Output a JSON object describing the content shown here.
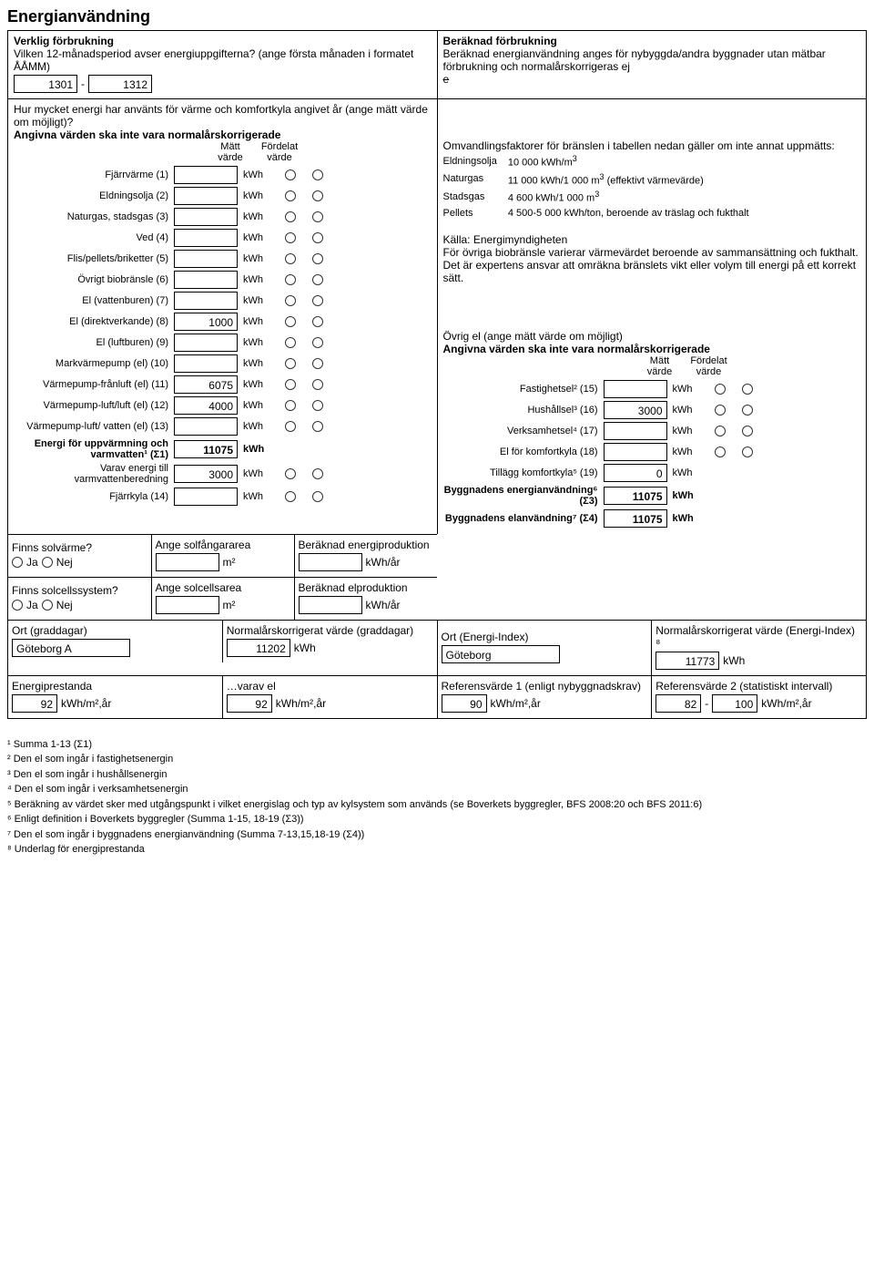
{
  "title": "Energianvändning",
  "topLeft": {
    "heading": "Verklig förbrukning",
    "periodQuestion": "Vilken 12-månadsperiod avser energiuppgifterna? (ange första månaden i formatet ÅÅMM)",
    "from": "1301",
    "sep": "-",
    "to": "1312"
  },
  "topRight": {
    "heading": "Beräknad förbrukning",
    "text": "Beräknad energianvändning anges för nybyggda/andra byggnader utan mätbar förbrukning och normalårskorrigeras ej",
    "eStrike": "e"
  },
  "midLeftIntro": {
    "q": "Hur mycket energi har använts för värme och komfortkyla angivet år (ange mätt värde om möjligt)?",
    "note": "Angivna värden ska inte vara normalårskorrigerade",
    "hdrMatt": "Mätt värde",
    "hdrFord": "Fördelat värde"
  },
  "energyRows": [
    {
      "label": "Fjärrvärme (1)",
      "value": "",
      "unit": "kWh"
    },
    {
      "label": "Eldningsolja (2)",
      "value": "",
      "unit": "kWh"
    },
    {
      "label": "Naturgas, stadsgas (3)",
      "value": "",
      "unit": "kWh"
    },
    {
      "label": "Ved (4)",
      "value": "",
      "unit": "kWh"
    },
    {
      "label": "Flis/pellets/briketter (5)",
      "value": "",
      "unit": "kWh"
    },
    {
      "label": "Övrigt biobränsle (6)",
      "value": "",
      "unit": "kWh"
    },
    {
      "label": "El (vattenburen) (7)",
      "value": "",
      "unit": "kWh"
    },
    {
      "label": "El (direktverkande) (8)",
      "value": "1000",
      "unit": "kWh"
    },
    {
      "label": "El (luftburen) (9)",
      "value": "",
      "unit": "kWh"
    },
    {
      "label": "Markvärmepump (el) (10)",
      "value": "",
      "unit": "kWh"
    },
    {
      "label": "Värmepump-frånluft (el) (11)",
      "value": "6075",
      "unit": "kWh"
    },
    {
      "label": "Värmepump-luft/luft (el) (12)",
      "value": "4000",
      "unit": "kWh"
    },
    {
      "label": "Värmepump-luft/ vatten (el) (13)",
      "value": "",
      "unit": "kWh"
    }
  ],
  "sigma1": {
    "label": "Energi för uppvärmning och varmvatten¹ (Σ1)",
    "value": "11075",
    "unit": "kWh",
    "bold": true,
    "noRadios": true
  },
  "varav": {
    "label": "Varav energi till varmvattenberedning",
    "value": "3000",
    "unit": "kWh"
  },
  "fjarrkyla": {
    "label": "Fjärrkyla (14)",
    "value": "",
    "unit": "kWh"
  },
  "factorsIntro": "Omvandlingsfaktorer för bränslen i tabellen nedan gäller om inte annat uppmätts:",
  "factors": [
    {
      "k": "Eldningsolja",
      "v": "10 000 kWh/m",
      "sup": "3",
      "tail": ""
    },
    {
      "k": "Naturgas",
      "v": "11 000 kWh/1 000 m",
      "sup": "3",
      "tail": " (effektivt värmevärde)"
    },
    {
      "k": "Stadsgas",
      "v": "4 600 kWh/1 000 m",
      "sup": "3",
      "tail": ""
    },
    {
      "k": "Pellets",
      "v": "4 500-5 000 kWh/ton, beroende av träslag och fukthalt",
      "sup": "",
      "tail": ""
    }
  ],
  "sourceLine": "Källa: Energimyndigheten",
  "sourceText": "För övriga biobränsle varierar värmevärdet beroende av sammansättning och fukthalt. Det är expertens ansvar att omräkna bränslets vikt eller volym till energi på ett korrekt sätt.",
  "ovrigEl": {
    "heading": "Övrig el (ange mätt värde om möjligt)",
    "note": "Angivna värden ska inte vara normalårskorrigerade",
    "hdrMatt": "Mätt värde",
    "hdrFord": "Fördelat värde"
  },
  "rightRows": [
    {
      "label": "Fastighetsel² (15)",
      "value": "",
      "unit": "kWh"
    },
    {
      "label": "Hushållsel³ (16)",
      "value": "3000",
      "unit": "kWh"
    },
    {
      "label": "Verksamhetsel⁴ (17)",
      "value": "",
      "unit": "kWh"
    },
    {
      "label": "El för komfortkyla (18)",
      "value": "",
      "unit": "kWh"
    }
  ],
  "tillagg": {
    "label": "Tillägg komfortkyla⁵ (19)",
    "value": "0",
    "unit": "kWh",
    "noRadios": true
  },
  "sigma3": {
    "label": "Byggnadens energianvändning⁶ (Σ3)",
    "value": "11075",
    "unit": "kWh",
    "bold": true,
    "noRadios": true
  },
  "sigma4": {
    "label": "Byggnadens elanvändning⁷ (Σ4)",
    "value": "11075",
    "unit": "kWh",
    "bold": true,
    "noRadios": true
  },
  "solv": {
    "q": "Finns solvärme?",
    "areaLbl": "Ange solfångararea",
    "areaUnit": "m²",
    "prodLbl": "Beräknad energiproduktion",
    "prodUnit": "kWh/år",
    "ja": "Ja",
    "nej": "Nej"
  },
  "solc": {
    "q": "Finns solcellssystem?",
    "areaLbl": "Ange solcellsarea",
    "areaUnit": "m²",
    "prodLbl": "Beräknad elproduktion",
    "prodUnit": "kWh/år",
    "ja": "Ja",
    "nej": "Nej"
  },
  "ortGradLbl": "Ort (graddagar)",
  "normGradLbl": "Normalårskorrigerat värde (graddagar)",
  "ortGrad": "Göteborg A",
  "normGrad": "11202",
  "normGradUnit": "kWh",
  "ortEILbl": "Ort (Energi-Index)",
  "normEILbl": "Normalårskorrigerat värde (Energi-Index) ⁸",
  "ortEI": "Göteborg",
  "normEI": "11773",
  "normEIUnit": "kWh",
  "bottom": {
    "epLbl": "Energiprestanda",
    "ep": "92",
    "epUnit": "kWh/m²,år",
    "varavElLbl": "…varav el",
    "varavEl": "92",
    "varavElUnit": "kWh/m²,år",
    "ref1Lbl": "Referensvärde 1 (enligt nybyggnadskrav)",
    "ref1": "90",
    "ref1Unit": "kWh/m²,år",
    "ref2Lbl": "Referensvärde 2 (statistiskt intervall)",
    "ref2a": "82",
    "sep": "-",
    "ref2b": "100",
    "ref2Unit": "kWh/m²,år"
  },
  "footnotes": [
    "¹ Summa 1-13 (Σ1)",
    "² Den el som ingår i fastighetsenergin",
    "³ Den el som ingår i hushållsenergin",
    "⁴ Den el som ingår i verksamhetsenergin",
    "⁵ Beräkning av värdet sker med utgångspunkt i vilket energislag och typ av kylsystem som används (se Boverkets byggregler, BFS 2008:20 och BFS 2011:6)",
    "⁶ Enligt definition i Boverkets byggregler (Summa 1-15, 18-19 (Σ3))",
    "⁷ Den el som ingår i byggnadens energianvändning (Summa 7-13,15,18-19 (Σ4))",
    "⁸ Underlag för energiprestanda"
  ]
}
